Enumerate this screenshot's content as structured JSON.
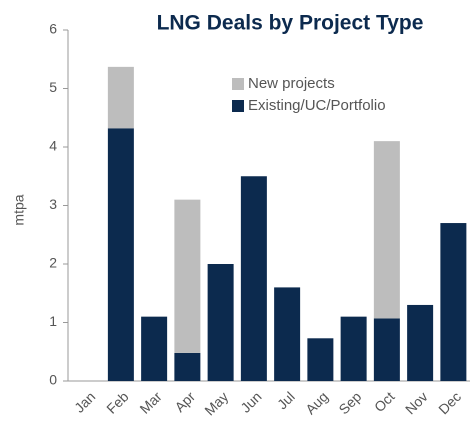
{
  "chart_data": {
    "type": "stacked_bar",
    "title": "LNG Deals by Project Type",
    "y_label": "mtpa",
    "categories": [
      "Jan",
      "Feb",
      "Mar",
      "Apr",
      "May",
      "Jun",
      "Jul",
      "Aug",
      "Sep",
      "Oct",
      "Nov",
      "Dec"
    ],
    "series": [
      {
        "name": "New projects",
        "color": "#bdbdbd",
        "values": [
          0,
          1.05,
          0,
          2.62,
          0,
          0,
          0,
          0,
          0,
          3.03,
          0,
          0
        ]
      },
      {
        "name": "Existing/UC/Portfolio",
        "color": "#0c2a4e",
        "values": [
          0,
          4.32,
          1.1,
          0.48,
          2.0,
          3.5,
          1.6,
          0.73,
          1.1,
          1.07,
          1.3,
          2.7
        ]
      }
    ],
    "ylim": [
      0,
      6
    ],
    "yticks": [
      0,
      1,
      2,
      3,
      4,
      5,
      6
    ]
  }
}
